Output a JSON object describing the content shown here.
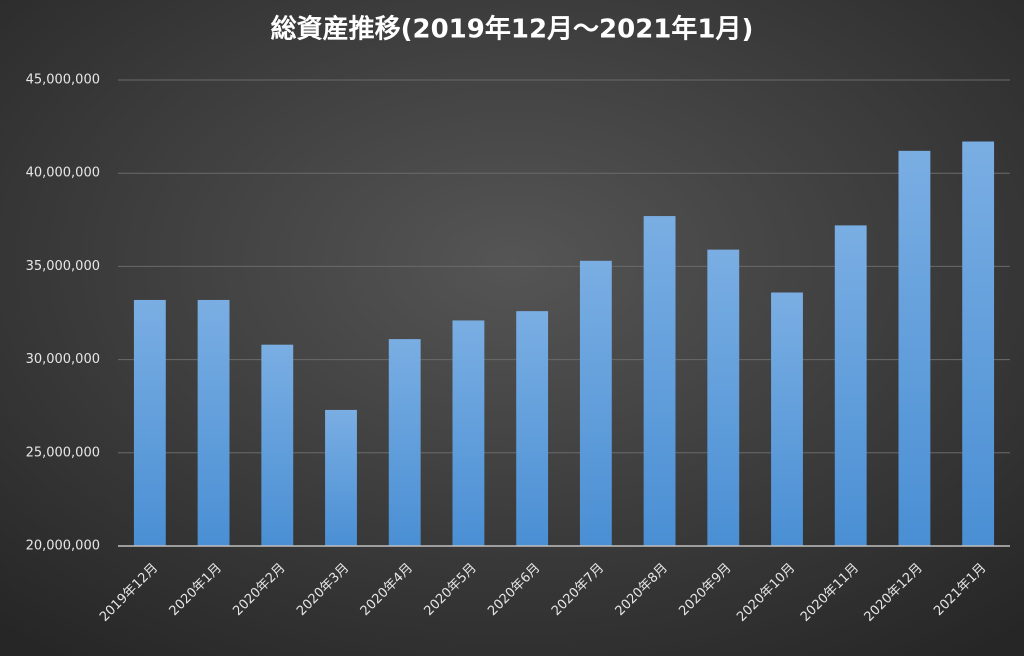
{
  "chart_data": {
    "type": "bar",
    "title": "総資産推移(2019年12月～2021年1月)",
    "categories": [
      "2019年12月",
      "2020年1月",
      "2020年2月",
      "2020年3月",
      "2020年4月",
      "2020年5月",
      "2020年6月",
      "2020年7月",
      "2020年8月",
      "2020年9月",
      "2020年10月",
      "2020年11月",
      "2020年12月",
      "2021年1月"
    ],
    "values": [
      33200000,
      33200000,
      30800000,
      27300000,
      31100000,
      32100000,
      32600000,
      35300000,
      37700000,
      35900000,
      33600000,
      37200000,
      41200000,
      41700000
    ],
    "color": "#5b9bd5",
    "ylim": [
      20000000,
      45000000
    ],
    "yticks": [
      {
        "value": 20000000,
        "label": "20,000,000"
      },
      {
        "value": 25000000,
        "label": "25,000,000"
      },
      {
        "value": 30000000,
        "label": "30,000,000"
      },
      {
        "value": 35000000,
        "label": "35,000,000"
      },
      {
        "value": 40000000,
        "label": "40,000,000"
      },
      {
        "value": 45000000,
        "label": "45,000,000"
      }
    ],
    "grid": true
  }
}
